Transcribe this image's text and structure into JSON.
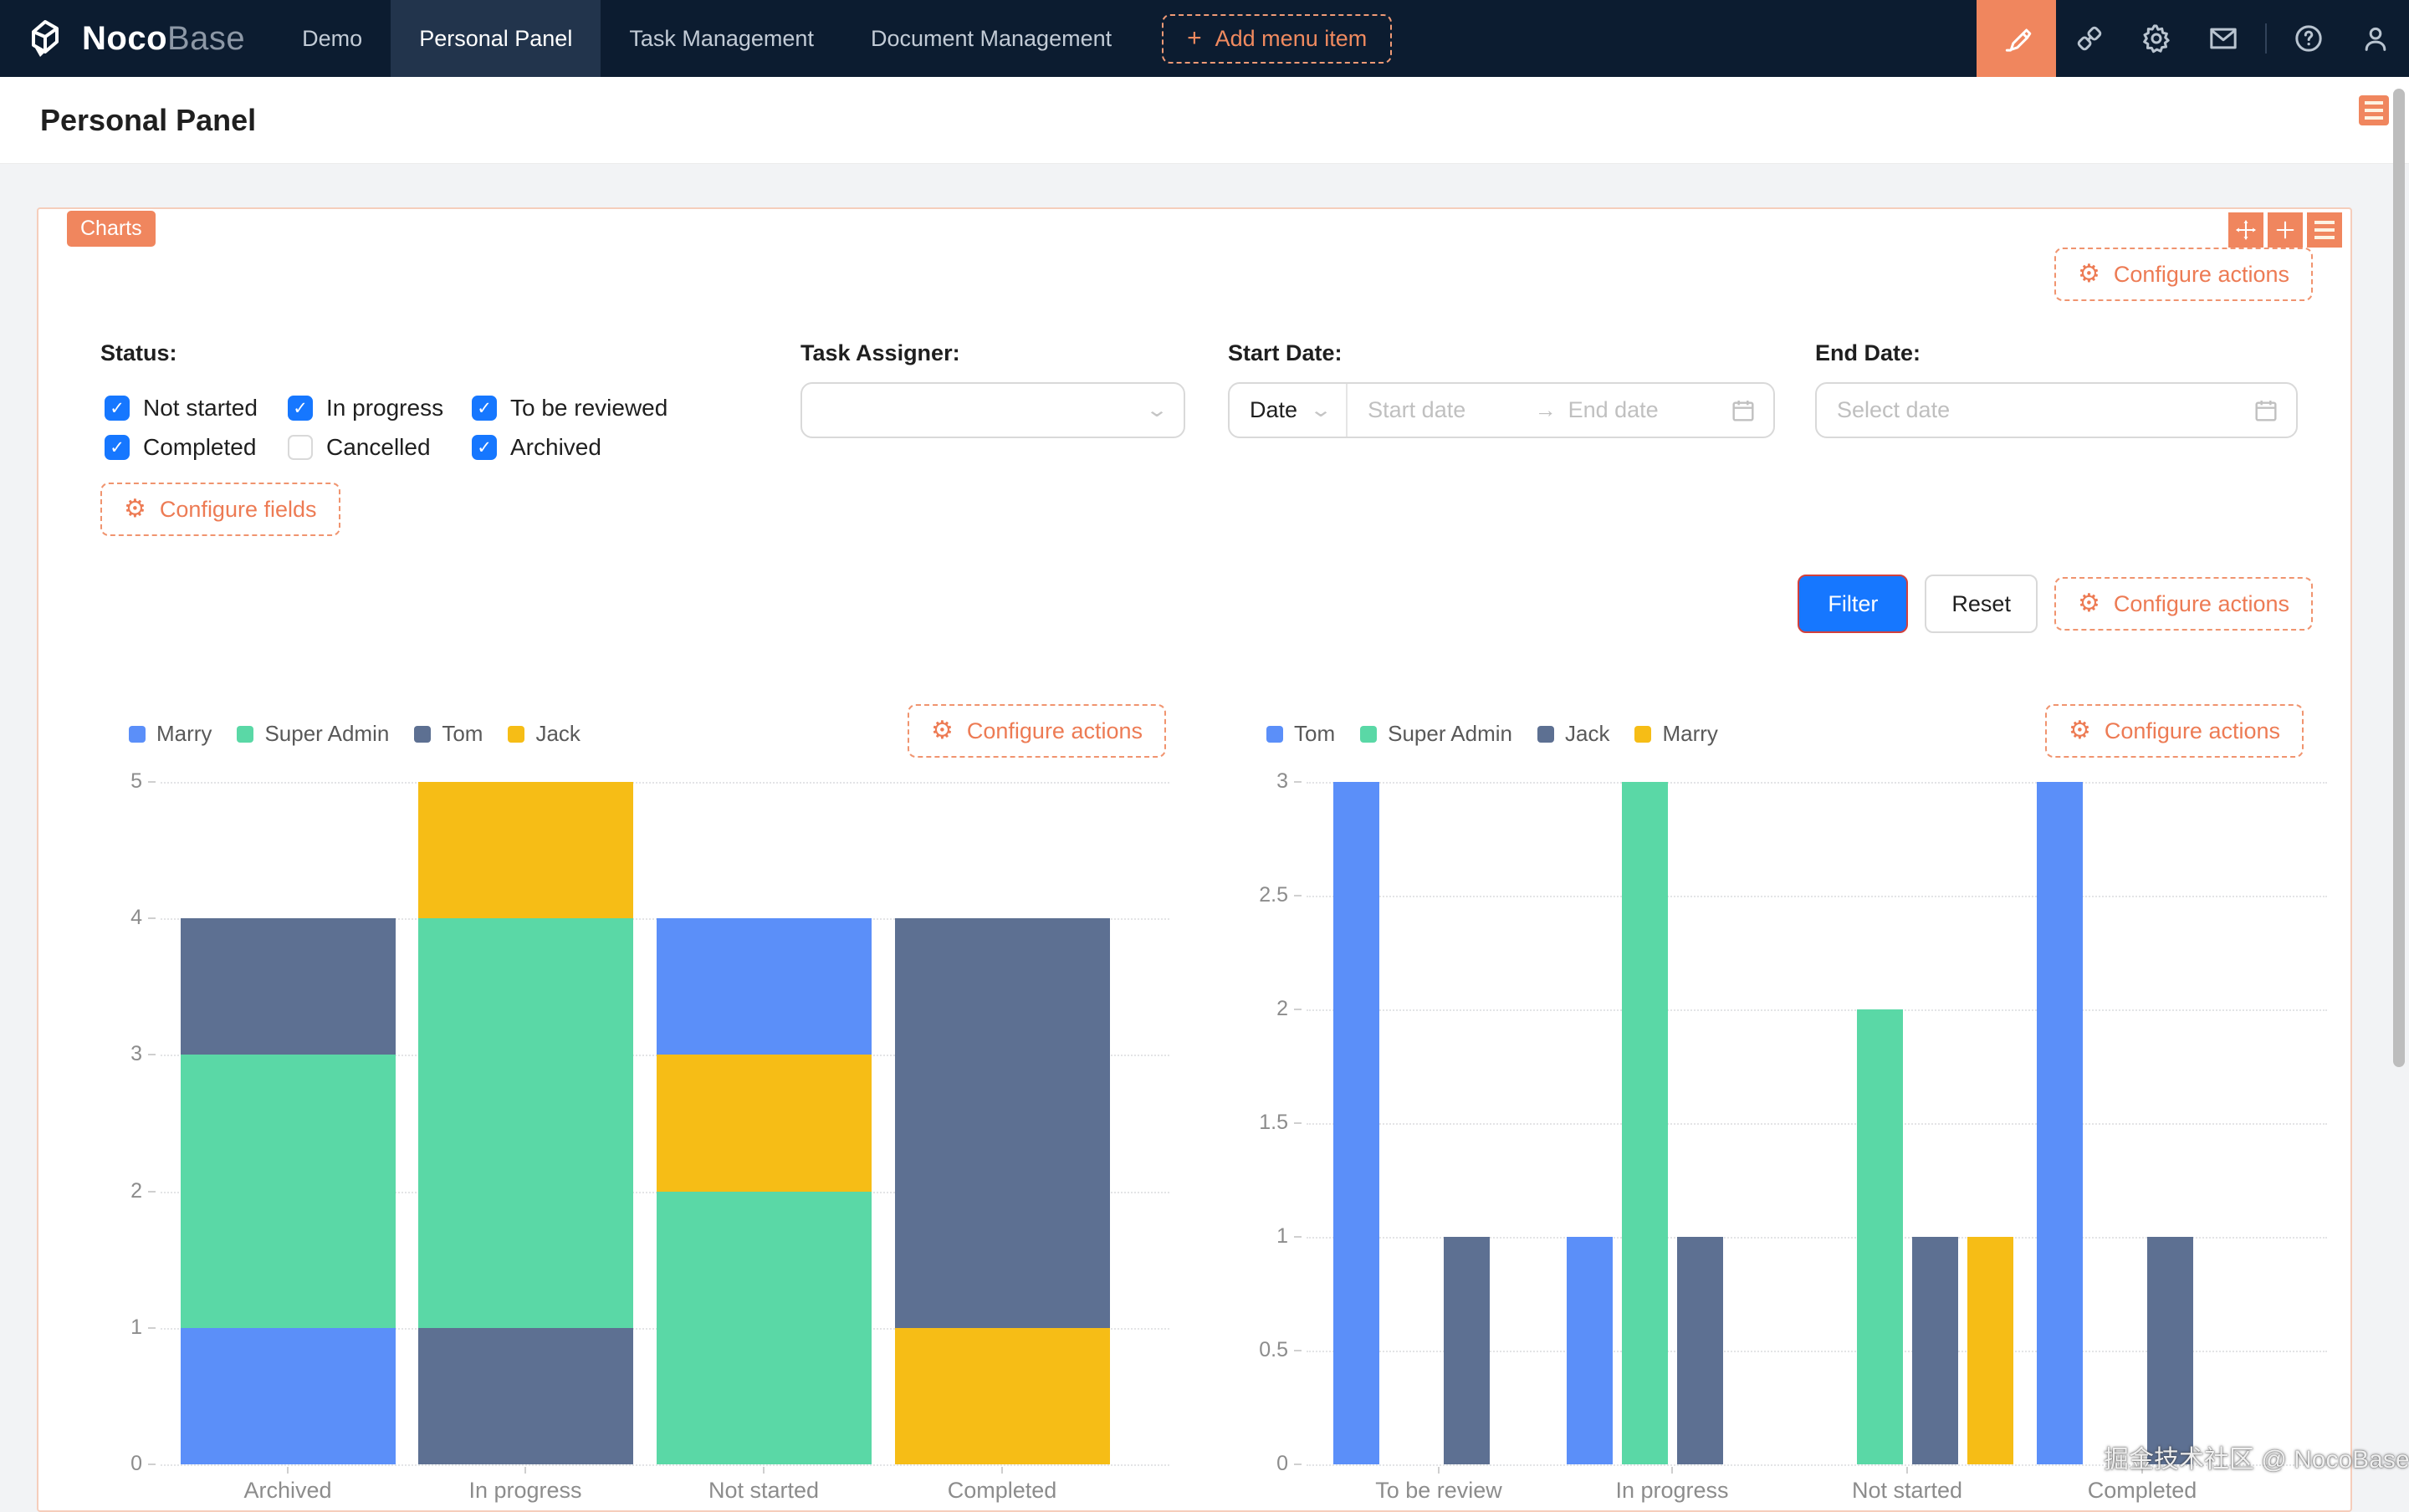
{
  "navbar": {
    "logo": {
      "primary": "Noco",
      "secondary": "Base"
    },
    "items": [
      {
        "label": "Demo"
      },
      {
        "label": "Personal Panel"
      },
      {
        "label": "Task Management"
      },
      {
        "label": "Document Management"
      }
    ],
    "active_index": 1,
    "add_menu_item_label": "Add menu item"
  },
  "header": {
    "title": "Personal Panel"
  },
  "block": {
    "badge_label": "Charts",
    "top_configure_actions_label": "Configure actions",
    "filter_form": {
      "status": {
        "label": "Status:",
        "options": [
          {
            "label": "Not started",
            "checked": true
          },
          {
            "label": "In progress",
            "checked": true
          },
          {
            "label": "To be reviewed",
            "checked": true
          },
          {
            "label": "Completed",
            "checked": true
          },
          {
            "label": "Cancelled",
            "checked": false
          },
          {
            "label": "Archived",
            "checked": true
          }
        ]
      },
      "task_assigner": {
        "label": "Task Assigner:",
        "value": ""
      },
      "start_date": {
        "label": "Start Date:",
        "mode_value": "Date",
        "start_placeholder": "Start date",
        "end_placeholder": "End date"
      },
      "end_date": {
        "label": "End Date:",
        "placeholder": "Select date"
      },
      "configure_fields_label": "Configure fields",
      "filter_button_label": "Filter",
      "reset_button_label": "Reset",
      "configure_actions_label": "Configure actions"
    }
  },
  "chart_data": [
    {
      "type": "bar",
      "variant": "stacked",
      "title": "",
      "legend": [
        "Marry",
        "Super Admin",
        "Tom",
        "Jack"
      ],
      "legend_position": "top-left",
      "colors": {
        "Marry": "#5B8FF9",
        "Super Admin": "#5AD8A6",
        "Tom": "#5D7092",
        "Jack": "#F6BD16"
      },
      "categories": [
        "Archived",
        "In progress",
        "Not started",
        "Completed"
      ],
      "ylim": [
        0,
        5
      ],
      "yticks": [
        0,
        1,
        2,
        3,
        4,
        5
      ],
      "grid": "dotted",
      "stacks": [
        [
          {
            "name": "Marry",
            "value": 1
          },
          {
            "name": "Super Admin",
            "value": 2
          },
          {
            "name": "Tom",
            "value": 1
          }
        ],
        [
          {
            "name": "Tom",
            "value": 1
          },
          {
            "name": "Super Admin",
            "value": 3
          },
          {
            "name": "Jack",
            "value": 1
          }
        ],
        [
          {
            "name": "Super Admin",
            "value": 2
          },
          {
            "name": "Jack",
            "value": 1
          },
          {
            "name": "Marry",
            "value": 1
          }
        ],
        [
          {
            "name": "Jack",
            "value": 1
          },
          {
            "name": "Tom",
            "value": 3
          }
        ]
      ],
      "configure_actions_label": "Configure actions"
    },
    {
      "type": "bar",
      "variant": "grouped",
      "title": "",
      "legend": [
        "Tom",
        "Super Admin",
        "Jack",
        "Marry"
      ],
      "legend_position": "top-left",
      "colors": {
        "Tom": "#5B8FF9",
        "Super Admin": "#5AD8A6",
        "Jack": "#5D7092",
        "Marry": "#F6BD16"
      },
      "categories": [
        "To be review",
        "In progress",
        "Not started",
        "Completed"
      ],
      "ylim": [
        0,
        3
      ],
      "yticks": [
        0,
        0.5,
        1,
        1.5,
        2,
        2.5,
        3
      ],
      "grid": "dotted",
      "series": [
        {
          "name": "Tom",
          "values": [
            3,
            1,
            0,
            3
          ]
        },
        {
          "name": "Super Admin",
          "values": [
            0,
            3,
            2,
            0
          ]
        },
        {
          "name": "Jack",
          "values": [
            1,
            1,
            1,
            1
          ]
        },
        {
          "name": "Marry",
          "values": [
            0,
            0,
            1,
            0
          ]
        }
      ],
      "configure_actions_label": "Configure actions"
    }
  ],
  "watermark": "掘金技术社区 @ NocoBase",
  "colors": {
    "accent_orange": "#ED7B54",
    "badge_orange": "#F0865E",
    "primary_blue": "#1677FF",
    "navbar_bg": "#0c1c30",
    "series_blue": "#5B8FF9",
    "series_green": "#5AD8A6",
    "series_slate": "#5D7092",
    "series_yellow": "#F6BD16"
  }
}
